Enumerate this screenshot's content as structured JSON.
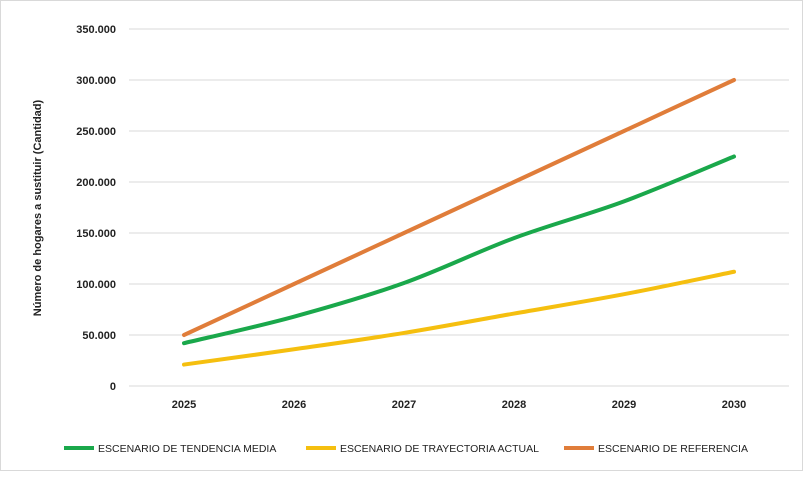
{
  "chart_data": {
    "type": "line",
    "title": "",
    "xlabel": "",
    "ylabel": "Número de hogares a sustituir (Cantidad)",
    "categories": [
      "2025",
      "2026",
      "2027",
      "2028",
      "2029",
      "2030"
    ],
    "ylim": [
      0,
      350000
    ],
    "yticks": [
      0,
      50000,
      100000,
      150000,
      200000,
      250000,
      300000,
      350000
    ],
    "ytick_labels": [
      "0",
      "50.000",
      "100.000",
      "150.000",
      "200.000",
      "250.000",
      "300.000",
      "350.000"
    ],
    "grid": true,
    "legend": "bottom",
    "series": [
      {
        "name": "ESCENARIO DE TENDENCIA MEDIA",
        "color": "#1aa84b",
        "values": [
          42000,
          68000,
          101000,
          145000,
          181000,
          225000
        ]
      },
      {
        "name": "ESCENARIO DE TRAYECTORIA ACTUAL",
        "color": "#f5bf0f",
        "values": [
          21000,
          36000,
          52000,
          71000,
          90000,
          112000
        ]
      },
      {
        "name": "ESCENARIO DE REFERENCIA",
        "color": "#e07d3a",
        "values": [
          50000,
          100000,
          150000,
          200000,
          250000,
          300000
        ]
      }
    ]
  }
}
